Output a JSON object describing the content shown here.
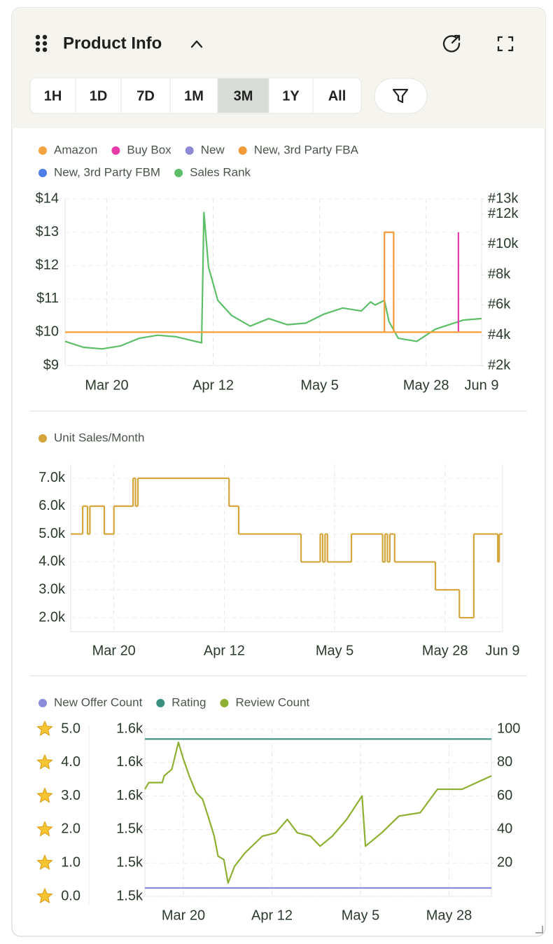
{
  "header": {
    "title": "Product Info",
    "ranges": [
      "1H",
      "1D",
      "7D",
      "1M",
      "3M",
      "1Y",
      "All"
    ],
    "selected_index": 4
  },
  "chart_data": [
    {
      "type": "line",
      "xlim": [
        70,
        160
      ],
      "xticks": [
        {
          "value": 79,
          "label": "Mar 20"
        },
        {
          "value": 102,
          "label": "Apr 12"
        },
        {
          "value": 125,
          "label": "May 5"
        },
        {
          "value": 148,
          "label": "May 28"
        },
        {
          "value": 160,
          "label": "Jun 9"
        }
      ],
      "ylim": [
        9,
        14
      ],
      "yticks": [
        {
          "value": 9,
          "label": "$9"
        },
        {
          "value": 10,
          "label": "$10"
        },
        {
          "value": 11,
          "label": "$11"
        },
        {
          "value": 12,
          "label": "$12"
        },
        {
          "value": 13,
          "label": "$13"
        },
        {
          "value": 14,
          "label": "$14"
        }
      ],
      "y2lim": [
        2000,
        13000
      ],
      "y2ticks": [
        {
          "value": 2000,
          "label": "#2k"
        },
        {
          "value": 4000,
          "label": "#4k"
        },
        {
          "value": 6000,
          "label": "#6k"
        },
        {
          "value": 8000,
          "label": "#8k"
        },
        {
          "value": 10000,
          "label": "#10k"
        },
        {
          "value": 12000,
          "label": "#12k"
        },
        {
          "value": 13000,
          "label": "#13k"
        }
      ],
      "grid": true,
      "series": [
        {
          "name": "Amazon",
          "color": "#f4a340",
          "x": [
            70,
            160
          ],
          "values": [
            10,
            10
          ]
        },
        {
          "name": "Buy Box",
          "color": "#e83aa8",
          "x": [
            155,
            155
          ],
          "values": [
            10,
            13
          ]
        },
        {
          "name": "New",
          "color": "#8e89d6"
        },
        {
          "name": "New, 3rd Party FBA",
          "color": "#f29a38",
          "x": [
            70,
            139,
            139,
            141,
            141,
            160
          ],
          "values": [
            10,
            10,
            13,
            13,
            10,
            10
          ]
        },
        {
          "name": "New, 3rd Party FBM",
          "color": "#4e7fe6"
        },
        {
          "name": "Sales Rank",
          "color": "#5cbf68",
          "axis": "y2",
          "x": [
            70,
            74,
            78,
            82,
            86,
            90,
            94,
            99.5,
            100,
            101,
            103,
            106,
            110,
            114,
            118,
            122,
            126,
            130,
            134,
            136,
            137,
            139,
            140,
            142,
            146,
            150,
            154,
            155,
            156,
            160
          ],
          "values": [
            3600,
            3200,
            3100,
            3300,
            3800,
            4000,
            3900,
            3500,
            12100,
            8500,
            6300,
            5300,
            4600,
            5100,
            4700,
            4800,
            5400,
            5800,
            5600,
            6200,
            6000,
            6300,
            4900,
            3800,
            3600,
            4400,
            4800,
            4900,
            5000,
            5100
          ]
        }
      ]
    },
    {
      "type": "line",
      "step": true,
      "xlim": [
        70,
        160
      ],
      "xticks": [
        {
          "value": 79,
          "label": "Mar 20"
        },
        {
          "value": 102,
          "label": "Apr 12"
        },
        {
          "value": 125,
          "label": "May 5"
        },
        {
          "value": 148,
          "label": "May 28"
        },
        {
          "value": 160,
          "label": "Jun 9"
        }
      ],
      "ylim": [
        1500,
        7500
      ],
      "yticks": [
        {
          "value": 2000,
          "label": "2.0k"
        },
        {
          "value": 3000,
          "label": "3.0k"
        },
        {
          "value": 4000,
          "label": "4.0k"
        },
        {
          "value": 5000,
          "label": "5.0k"
        },
        {
          "value": 6000,
          "label": "6.0k"
        },
        {
          "value": 7000,
          "label": "7.0k"
        }
      ],
      "grid": true,
      "series": [
        {
          "name": "Unit Sales/Month",
          "color": "#d4a53a",
          "x": [
            70,
            72.5,
            73.5,
            74,
            77,
            79,
            83,
            83.5,
            84,
            103,
            105,
            118,
            122,
            122.5,
            123,
            123.5,
            128.5,
            135,
            135.5,
            136,
            136.5,
            137.5,
            146,
            151,
            154,
            159,
            159.3
          ],
          "values": [
            5000,
            6000,
            5000,
            6000,
            5000,
            6000,
            7000,
            6000,
            7000,
            6000,
            5000,
            4000,
            5000,
            4000,
            5000,
            4000,
            5000,
            4000,
            5000,
            4000,
            5000,
            4000,
            3000,
            2000,
            5000,
            4000,
            5000
          ]
        }
      ]
    },
    {
      "type": "line",
      "xlim": [
        69,
        159
      ],
      "xticks": [
        {
          "value": 79,
          "label": "Mar 20"
        },
        {
          "value": 102,
          "label": "Apr 12"
        },
        {
          "value": 125,
          "label": "May 5"
        },
        {
          "value": 148,
          "label": "May 28"
        }
      ],
      "ylim": [
        0,
        5
      ],
      "yticks": [
        {
          "value": 0,
          "label": "0.0"
        },
        {
          "value": 1,
          "label": "1.0"
        },
        {
          "value": 2,
          "label": "2.0"
        },
        {
          "value": 3,
          "label": "3.0"
        },
        {
          "value": 4,
          "label": "4.0"
        },
        {
          "value": 5,
          "label": "5.0"
        }
      ],
      "y3lim": [
        1525,
        1575
      ],
      "y3ticks": [
        {
          "value": 1525,
          "label": "1.5k"
        },
        {
          "value": 1535,
          "label": "1.5k"
        },
        {
          "value": 1545,
          "label": "1.5k"
        },
        {
          "value": 1555,
          "label": "1.6k"
        },
        {
          "value": 1565,
          "label": "1.6k"
        },
        {
          "value": 1575,
          "label": "1.6k"
        }
      ],
      "y2lim": [
        0,
        100
      ],
      "y2ticks": [
        20,
        40,
        60,
        80,
        100
      ],
      "grid": true,
      "series": [
        {
          "name": "New Offer Count",
          "color": "#8b8bdc",
          "axis": "y2",
          "x": [
            69,
            159
          ],
          "values": [
            5,
            5
          ]
        },
        {
          "name": "Rating",
          "color": "#3b8f7f",
          "x": [
            69,
            159
          ],
          "values": [
            4.7,
            4.7
          ]
        },
        {
          "name": "Review Count",
          "color": "#8db032",
          "axis": "y3",
          "x": [
            69,
            70,
            73.5,
            74,
            76,
            77.7,
            79,
            80.5,
            82.3,
            84,
            85.4,
            87,
            88,
            89.5,
            90.6,
            92.3,
            95,
            99.5,
            103,
            106,
            108.6,
            112,
            114.5,
            117.7,
            121.4,
            125.4,
            126.3,
            130.5,
            135,
            140.5,
            145,
            151.4,
            159
          ],
          "values": [
            1557,
            1559,
            1559,
            1561,
            1563,
            1571,
            1566,
            1561,
            1556,
            1554,
            1549,
            1543,
            1537,
            1536,
            1529,
            1534,
            1538,
            1543,
            1544,
            1548,
            1544,
            1543,
            1540,
            1543,
            1548,
            1555,
            1540,
            1544,
            1549,
            1550,
            1557,
            1557,
            1561
          ]
        }
      ]
    }
  ]
}
